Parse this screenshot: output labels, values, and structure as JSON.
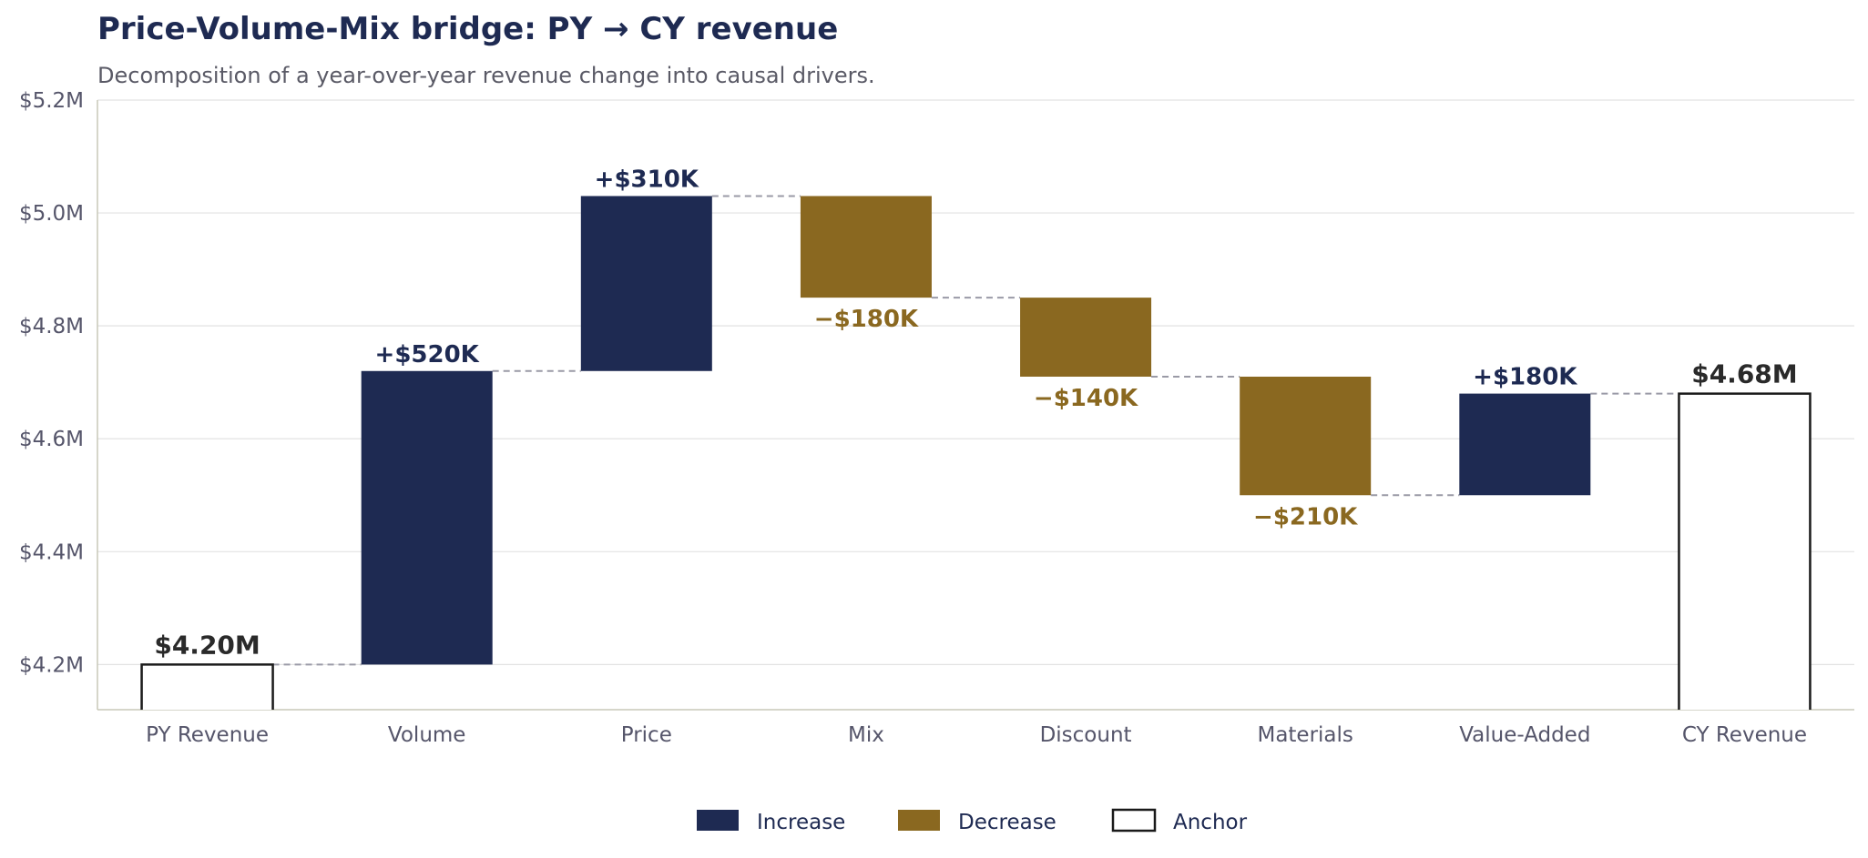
{
  "chart_data": {
    "type": "bar",
    "subtype": "waterfall",
    "title": "Price-Volume-Mix bridge: PY → CY revenue",
    "subtitle": "Decomposition of a year-over-year revenue change into causal drivers.",
    "xlabel": "",
    "ylabel": "",
    "ylim": [
      4.12,
      5.2
    ],
    "yticks": [
      4.2,
      4.4,
      4.6,
      4.8,
      5.0,
      5.2
    ],
    "ytick_labels": [
      "$4.2M",
      "$4.4M",
      "$4.6M",
      "$4.8M",
      "$5.0M",
      "$5.2M"
    ],
    "grid": true,
    "legend_position": "bottom-center",
    "categories": [
      "PY Revenue",
      "Volume",
      "Price",
      "Mix",
      "Discount",
      "Materials",
      "Value-Added",
      "CY Revenue"
    ],
    "steps": [
      {
        "category": "PY Revenue",
        "kind": "anchor",
        "value": 4.2,
        "label": "$4.20M"
      },
      {
        "category": "Volume",
        "kind": "increase",
        "value": 0.52,
        "label": "+$520K"
      },
      {
        "category": "Price",
        "kind": "increase",
        "value": 0.31,
        "label": "+$310K"
      },
      {
        "category": "Mix",
        "kind": "decrease",
        "value": -0.18,
        "label": "−$180K"
      },
      {
        "category": "Discount",
        "kind": "decrease",
        "value": -0.14,
        "label": "−$140K"
      },
      {
        "category": "Materials",
        "kind": "decrease",
        "value": -0.21,
        "label": "−$210K"
      },
      {
        "category": "Value-Added",
        "kind": "increase",
        "value": 0.18,
        "label": "+$180K"
      },
      {
        "category": "CY Revenue",
        "kind": "anchor",
        "value": 4.68,
        "label": "$4.68M"
      }
    ],
    "legend": [
      {
        "kind": "increase",
        "label": "Increase"
      },
      {
        "kind": "decrease",
        "label": "Decrease"
      },
      {
        "kind": "anchor",
        "label": "Anchor"
      }
    ],
    "colors": {
      "increase": "#1e2a52",
      "decrease": "#8a6820",
      "anchor_fill": "#ffffff",
      "anchor_stroke": "#1a1a1a",
      "connector": "#9a9aa6",
      "grid": "#e2e2e2",
      "axis": "#c8c8b8"
    }
  }
}
